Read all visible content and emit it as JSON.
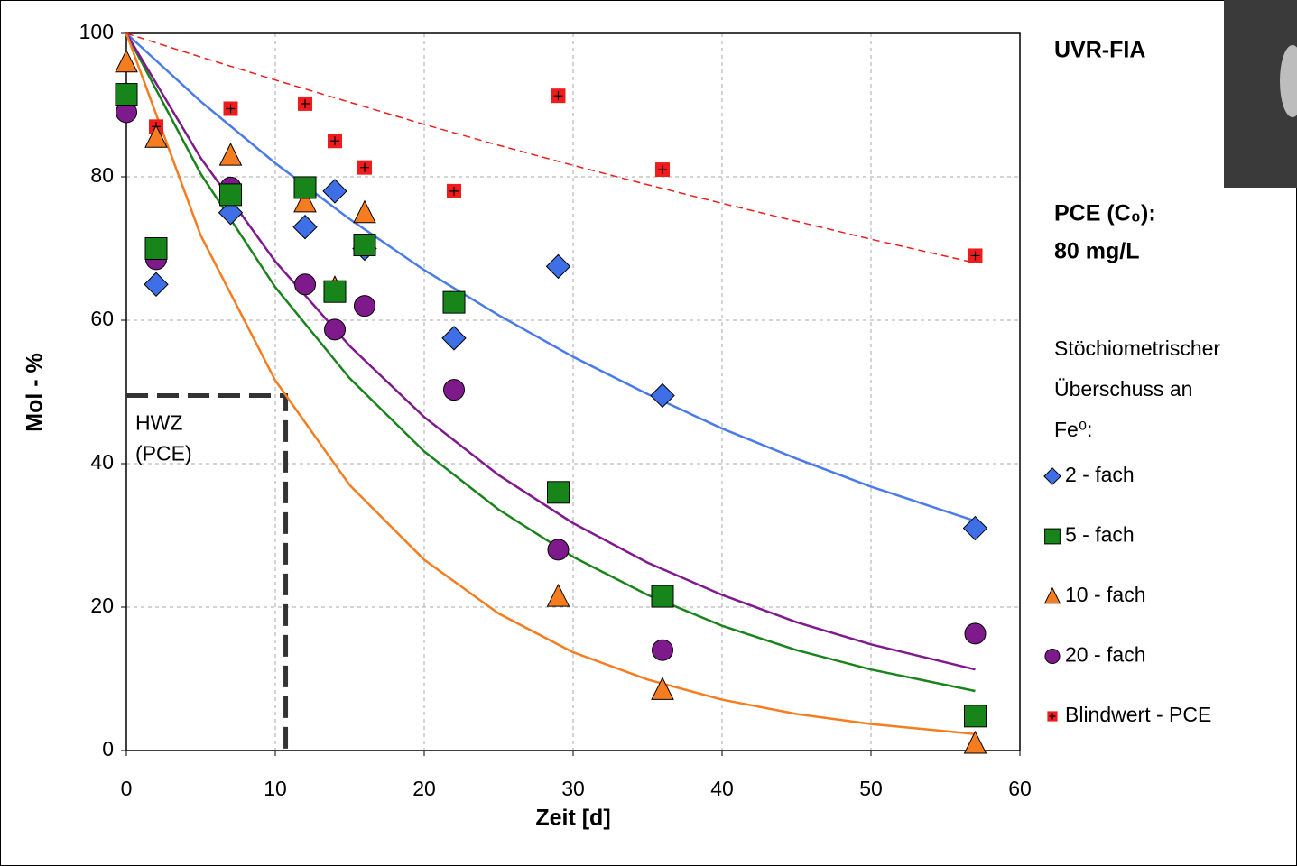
{
  "chart_data": {
    "type": "scatter",
    "x_label": "Zeit [d]",
    "y_label": "Mol - %",
    "xlim": [
      0,
      60
    ],
    "xticks": [
      0,
      10,
      20,
      30,
      40,
      50,
      60
    ],
    "ylim": [
      0,
      100
    ],
    "yticks": [
      0,
      20,
      40,
      60,
      80,
      100
    ],
    "grid": true,
    "side_texts": [
      "UVR-FIA",
      "PCE (C₀):",
      "80 mg/L"
    ],
    "legend_title": [
      "Stöchiometrischer",
      "Überschuss an",
      "Fe⁰:"
    ],
    "series": [
      {
        "name": "2 - fach",
        "marker": "diamond",
        "color": "#3f6fe6",
        "x": [
          2,
          7,
          12,
          14,
          16,
          22,
          29,
          36,
          57
        ],
        "values": [
          65,
          75,
          73,
          78,
          70,
          57.5,
          67.5,
          49.5,
          31
        ]
      },
      {
        "name": "5 - fach",
        "marker": "square",
        "color": "#17851a",
        "x": [
          0,
          2,
          7,
          12,
          14,
          16,
          22,
          29,
          36,
          57
        ],
        "values": [
          91.5,
          70,
          77.5,
          78.5,
          64,
          70.5,
          62.5,
          36,
          21.5,
          4.8
        ]
      },
      {
        "name": "10 - fach",
        "marker": "triangle",
        "color": "#f57c1f",
        "x": [
          0,
          2,
          7,
          12,
          14,
          16,
          29,
          36,
          57
        ],
        "values": [
          96,
          85.5,
          83,
          76.5,
          64.5,
          75,
          21.5,
          8.5,
          1
        ]
      },
      {
        "name": "20 - fach",
        "marker": "circle",
        "color": "#7f1a8c",
        "x": [
          0,
          2,
          7,
          12,
          14,
          16,
          22,
          29,
          36,
          57
        ],
        "values": [
          89,
          68.5,
          78.5,
          65,
          58.7,
          62,
          50.3,
          28,
          14,
          16.3
        ]
      },
      {
        "name": "Blindwert - PCE",
        "marker": "plus-square",
        "color": "#ee1c1c",
        "x": [
          2,
          7,
          12,
          14,
          16,
          22,
          29,
          36,
          57
        ],
        "values": [
          87,
          89.5,
          90.2,
          85,
          81.3,
          78,
          91.3,
          81,
          69
        ]
      }
    ],
    "fits": [
      {
        "color": "#4a7bea",
        "dashed": false,
        "x": [
          0,
          5,
          10,
          15,
          20,
          25,
          30,
          35,
          40,
          45,
          50,
          57
        ],
        "values": [
          100,
          90.5,
          81.9,
          74.1,
          67,
          60.7,
          54.9,
          49.7,
          44.9,
          40.7,
          36.8,
          32
        ]
      },
      {
        "color": "#1a841c",
        "dashed": false,
        "x": [
          0,
          5,
          10,
          15,
          20,
          25,
          30,
          35,
          40,
          45,
          50,
          57
        ],
        "values": [
          100,
          80.4,
          64.6,
          51.9,
          41.7,
          33.6,
          27,
          21.7,
          17.4,
          14,
          11.3,
          8.3
        ]
      },
      {
        "color": "#7f1a8c",
        "dashed": false,
        "x": [
          0,
          5,
          10,
          15,
          20,
          25,
          30,
          35,
          40,
          45,
          50,
          57
        ],
        "values": [
          100,
          82.6,
          68.2,
          56.4,
          46.5,
          38.4,
          31.7,
          26.2,
          21.7,
          17.9,
          14.8,
          11.3
        ]
      },
      {
        "color": "#f57c1f",
        "dashed": false,
        "x": [
          0,
          5,
          10,
          15,
          20,
          25,
          30,
          35,
          40,
          45,
          50,
          57
        ],
        "values": [
          100,
          71.8,
          51.6,
          37,
          26.6,
          19.1,
          13.7,
          9.9,
          7.1,
          5.1,
          3.7,
          2.3
        ]
      },
      {
        "color": "#ee1c1c",
        "dashed": true,
        "x": [
          0,
          5,
          10,
          15,
          20,
          25,
          30,
          35,
          40,
          45,
          50,
          57
        ],
        "values": [
          100,
          96.7,
          93.5,
          90.4,
          87.3,
          84.4,
          81.6,
          78.9,
          76.3,
          73.8,
          71.3,
          68
        ]
      }
    ],
    "half_life": {
      "label_lines": [
        "HWZ",
        "(PCE)"
      ],
      "x": 10.7,
      "y": 49.5
    }
  }
}
